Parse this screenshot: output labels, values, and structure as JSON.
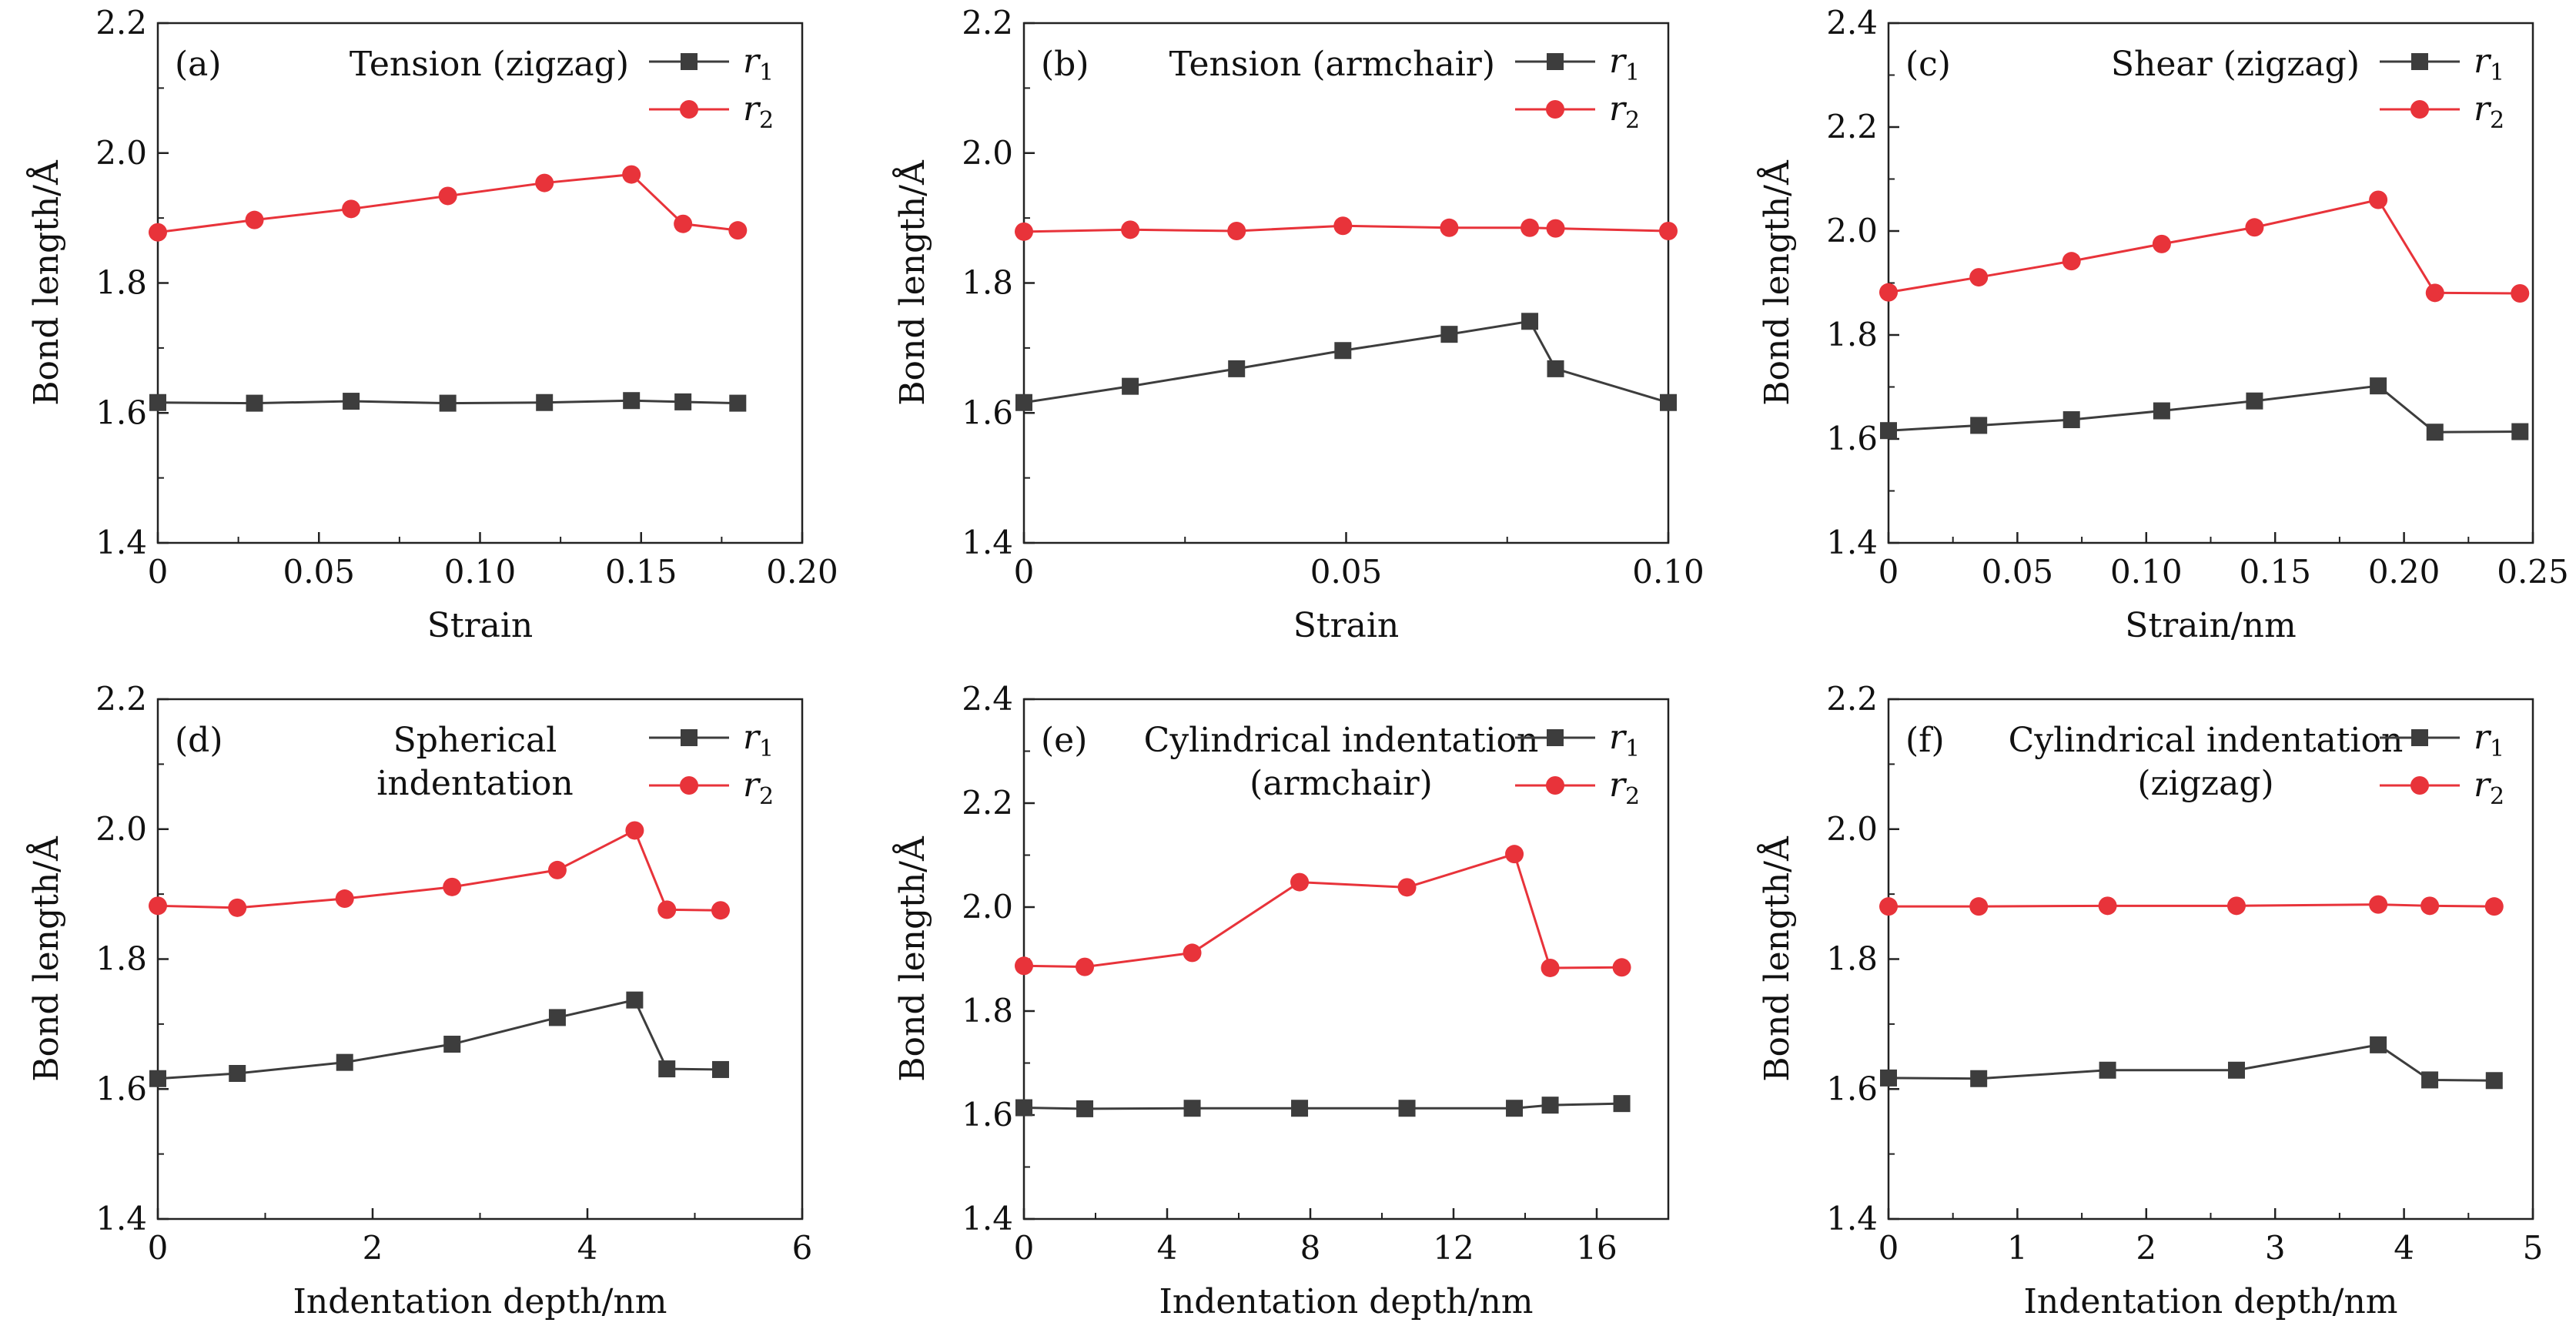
{
  "chart_data": [
    {
      "id": "a",
      "type": "line",
      "tag": "(a)",
      "title_lines": [
        "Tension (zigzag)"
      ],
      "xlabel": "Strain",
      "ylabel": "Bond length/Å",
      "xlim": [
        0,
        0.2
      ],
      "ylim": [
        1.4,
        2.2
      ],
      "xticks": [
        0,
        0.05,
        0.1,
        0.15,
        0.2
      ],
      "xtick_labels": [
        "0",
        "0.05",
        "0.10",
        "0.15",
        "0.20"
      ],
      "yticks": [
        1.4,
        1.6,
        1.8,
        2.0,
        2.2
      ],
      "ytick_labels": [
        "1.4",
        "1.6",
        "1.8",
        "2.0",
        "2.2"
      ],
      "series": [
        {
          "name": "r",
          "sub": "1",
          "color": "#3d3d3d",
          "marker": "square",
          "x": [
            0,
            0.03,
            0.06,
            0.09,
            0.12,
            0.147,
            0.163,
            0.18
          ],
          "y": [
            1.616,
            1.615,
            1.618,
            1.615,
            1.616,
            1.619,
            1.617,
            1.615
          ]
        },
        {
          "name": "r",
          "sub": "2",
          "color": "#e8333a",
          "marker": "circle",
          "x": [
            0,
            0.03,
            0.06,
            0.09,
            0.12,
            0.147,
            0.163,
            0.18
          ],
          "y": [
            1.878,
            1.897,
            1.914,
            1.934,
            1.954,
            1.967,
            1.891,
            1.881
          ]
        }
      ]
    },
    {
      "id": "b",
      "type": "line",
      "tag": "(b)",
      "title_lines": [
        "Tension (armchair)"
      ],
      "xlabel": "Strain",
      "ylabel": "Bond length/Å",
      "xlim": [
        0,
        0.1
      ],
      "ylim": [
        1.4,
        2.2
      ],
      "xticks": [
        0,
        0.05,
        0.1
      ],
      "xtick_labels": [
        "0",
        "0.05",
        "0.10"
      ],
      "yticks": [
        1.4,
        1.6,
        1.8,
        2.0,
        2.2
      ],
      "ytick_labels": [
        "1.4",
        "1.6",
        "1.8",
        "2.0",
        "2.2"
      ],
      "series": [
        {
          "name": "r",
          "sub": "1",
          "color": "#3d3d3d",
          "marker": "square",
          "x": [
            0,
            0.0165,
            0.033,
            0.0495,
            0.066,
            0.0785,
            0.0825,
            0.1
          ],
          "y": [
            1.616,
            1.641,
            1.668,
            1.696,
            1.721,
            1.741,
            1.668,
            1.616
          ]
        },
        {
          "name": "r",
          "sub": "2",
          "color": "#e8333a",
          "marker": "circle",
          "x": [
            0,
            0.0165,
            0.033,
            0.0495,
            0.066,
            0.0785,
            0.0825,
            0.1
          ],
          "y": [
            1.879,
            1.882,
            1.88,
            1.888,
            1.885,
            1.885,
            1.884,
            1.88
          ]
        }
      ]
    },
    {
      "id": "c",
      "type": "line",
      "tag": "(c)",
      "title_lines": [
        "Shear (zigzag)"
      ],
      "xlabel": "Strain/nm",
      "ylabel": "Bond length/Å",
      "xlim": [
        0,
        0.25
      ],
      "ylim": [
        1.4,
        2.4
      ],
      "xticks": [
        0,
        0.05,
        0.1,
        0.15,
        0.2,
        0.25
      ],
      "xtick_labels": [
        "0",
        "0.05",
        "0.10",
        "0.15",
        "0.20",
        "0.25"
      ],
      "yticks": [
        1.4,
        1.6,
        1.8,
        2.0,
        2.2,
        2.4
      ],
      "ytick_labels": [
        "1.4",
        "1.6",
        "1.8",
        "2.0",
        "2.2",
        "2.4"
      ],
      "series": [
        {
          "name": "r",
          "sub": "1",
          "color": "#3d3d3d",
          "marker": "square",
          "x": [
            0,
            0.035,
            0.071,
            0.106,
            0.142,
            0.19,
            0.212,
            0.245
          ],
          "y": [
            1.616,
            1.626,
            1.637,
            1.654,
            1.673,
            1.702,
            1.613,
            1.614
          ]
        },
        {
          "name": "r",
          "sub": "2",
          "color": "#e8333a",
          "marker": "circle",
          "x": [
            0,
            0.035,
            0.071,
            0.106,
            0.142,
            0.19,
            0.212,
            0.245
          ],
          "y": [
            1.882,
            1.911,
            1.942,
            1.975,
            2.007,
            2.06,
            1.881,
            1.88
          ]
        }
      ]
    },
    {
      "id": "d",
      "type": "line",
      "tag": "(d)",
      "title_lines": [
        "Spherical",
        "indentation"
      ],
      "xlabel": "Indentation depth/nm",
      "ylabel": "Bond length/Å",
      "xlim": [
        0,
        6
      ],
      "ylim": [
        1.4,
        2.2
      ],
      "xticks": [
        0,
        2,
        4,
        6
      ],
      "xtick_labels": [
        "0",
        "2",
        "4",
        "6"
      ],
      "yticks": [
        1.4,
        1.6,
        1.8,
        2.0,
        2.2
      ],
      "ytick_labels": [
        "1.4",
        "1.6",
        "1.8",
        "2.0",
        "2.2"
      ],
      "series": [
        {
          "name": "r",
          "sub": "1",
          "color": "#3d3d3d",
          "marker": "square",
          "x": [
            0,
            0.74,
            1.74,
            2.74,
            3.72,
            4.44,
            4.74,
            5.24
          ],
          "y": [
            1.616,
            1.624,
            1.641,
            1.669,
            1.71,
            1.737,
            1.631,
            1.63
          ]
        },
        {
          "name": "r",
          "sub": "2",
          "color": "#e8333a",
          "marker": "circle",
          "x": [
            0,
            0.74,
            1.74,
            2.74,
            3.72,
            4.44,
            4.74,
            5.24
          ],
          "y": [
            1.882,
            1.879,
            1.893,
            1.911,
            1.937,
            1.998,
            1.876,
            1.875
          ]
        }
      ]
    },
    {
      "id": "e",
      "type": "line",
      "tag": "(e)",
      "title_lines": [
        "Cylindrical indentation",
        "(armchair)"
      ],
      "xlabel": "Indentation depth/nm",
      "ylabel": "Bond length/Å",
      "xlim": [
        0,
        18
      ],
      "ylim": [
        1.4,
        2.4
      ],
      "xticks": [
        0,
        4,
        8,
        12,
        16
      ],
      "xtick_labels": [
        "0",
        "4",
        "8",
        "12",
        "16"
      ],
      "yticks": [
        1.4,
        1.6,
        1.8,
        2.0,
        2.2,
        2.4
      ],
      "ytick_labels": [
        "1.4",
        "1.6",
        "1.8",
        "2.0",
        "2.2",
        "2.4"
      ],
      "series": [
        {
          "name": "r",
          "sub": "1",
          "color": "#3d3d3d",
          "marker": "square",
          "x": [
            0,
            1.7,
            4.7,
            7.7,
            10.7,
            13.7,
            14.7,
            16.7
          ],
          "y": [
            1.614,
            1.612,
            1.613,
            1.613,
            1.613,
            1.613,
            1.619,
            1.622
          ]
        },
        {
          "name": "r",
          "sub": "2",
          "color": "#e8333a",
          "marker": "circle",
          "x": [
            0,
            1.7,
            4.7,
            7.7,
            10.7,
            13.7,
            14.7,
            16.7
          ],
          "y": [
            1.887,
            1.885,
            1.912,
            2.048,
            2.038,
            2.102,
            1.883,
            1.884
          ]
        }
      ]
    },
    {
      "id": "f",
      "type": "line",
      "tag": "(f)",
      "title_lines": [
        "Cylindrical indentation",
        "(zigzag)"
      ],
      "xlabel": "Indentation depth/nm",
      "ylabel": "Bond length/Å",
      "xlim": [
        0,
        5
      ],
      "ylim": [
        1.4,
        2.2
      ],
      "xticks": [
        0,
        1,
        2,
        3,
        4,
        5
      ],
      "xtick_labels": [
        "0",
        "1",
        "2",
        "3",
        "4",
        "5"
      ],
      "yticks": [
        1.4,
        1.6,
        1.8,
        2.0,
        2.2
      ],
      "ytick_labels": [
        "1.4",
        "1.6",
        "1.8",
        "2.0",
        "2.2"
      ],
      "series": [
        {
          "name": "r",
          "sub": "1",
          "color": "#3d3d3d",
          "marker": "square",
          "x": [
            0,
            0.7,
            1.7,
            2.7,
            3.8,
            4.2,
            4.7
          ],
          "y": [
            1.617,
            1.616,
            1.629,
            1.629,
            1.668,
            1.614,
            1.613
          ]
        },
        {
          "name": "r",
          "sub": "2",
          "color": "#e8333a",
          "marker": "circle",
          "x": [
            0,
            0.7,
            1.7,
            2.7,
            3.8,
            4.2,
            4.7
          ],
          "y": [
            1.881,
            1.881,
            1.882,
            1.882,
            1.884,
            1.882,
            1.881
          ]
        }
      ]
    }
  ]
}
